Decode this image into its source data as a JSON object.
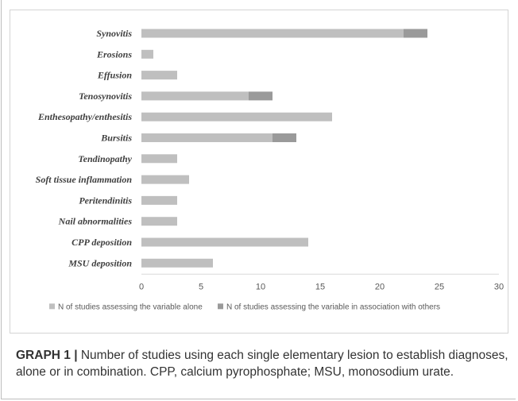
{
  "chart_data": {
    "type": "bar",
    "orientation": "horizontal",
    "stacked": true,
    "categories": [
      "Synovitis",
      "Erosions",
      "Effusion",
      "Tenosynovitis",
      "Enthesopathy/enthesitis",
      "Bursitis",
      "Tendinopathy",
      "Soft tissue inflammation",
      "Peritendinitis",
      "Nail abnormalities",
      "CPP deposition",
      "MSU deposition"
    ],
    "series": [
      {
        "name": "N of studies assessing the variable alone",
        "color": "#bfbfbf",
        "values": [
          22,
          1,
          3,
          9,
          16,
          11,
          3,
          4,
          3,
          3,
          14,
          6
        ]
      },
      {
        "name": "N of studies assessing the variable in association with others",
        "color": "#9a9a9a",
        "values": [
          2,
          0,
          0,
          2,
          0,
          2,
          0,
          0,
          0,
          0,
          0,
          0
        ]
      }
    ],
    "xlim": [
      0,
      30
    ],
    "xticks": [
      "0",
      "5",
      "10",
      "15",
      "20",
      "25",
      "30"
    ],
    "legend_position": "bottom",
    "grid": false
  },
  "caption": {
    "lead": "GRAPH 1 |",
    "text": " Number of studies using each single elementary lesion to establish diagnoses, alone or in combination. CPP, calcium pyrophosphate; MSU, monosodium urate."
  }
}
